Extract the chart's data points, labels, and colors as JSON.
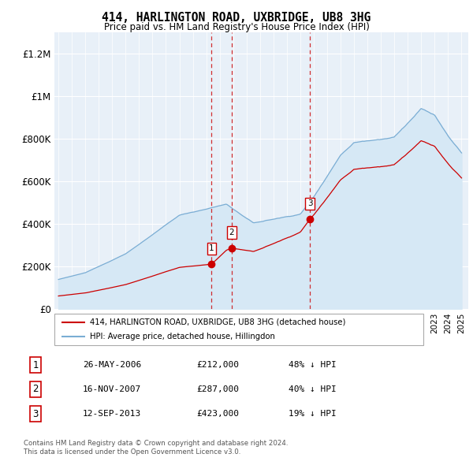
{
  "title": "414, HARLINGTON ROAD, UXBRIDGE, UB8 3HG",
  "subtitle": "Price paid vs. HM Land Registry's House Price Index (HPI)",
  "ylabel_ticks": [
    "£0",
    "£200K",
    "£400K",
    "£600K",
    "£800K",
    "£1M",
    "£1.2M"
  ],
  "ytick_vals": [
    0,
    200000,
    400000,
    600000,
    800000,
    1000000,
    1200000
  ],
  "ylim": [
    0,
    1300000
  ],
  "xlim_start": 1994.7,
  "xlim_end": 2025.5,
  "sales": [
    {
      "label": "1",
      "date": 2006.4,
      "price": 212000
    },
    {
      "label": "2",
      "date": 2007.88,
      "price": 287000
    },
    {
      "label": "3",
      "date": 2013.71,
      "price": 423000
    }
  ],
  "sale_line_color": "#cc0000",
  "hpi_line_color": "#7aadd4",
  "hpi_fill_color": "#d6e8f5",
  "legend_sale_label": "414, HARLINGTON ROAD, UXBRIDGE, UB8 3HG (detached house)",
  "legend_hpi_label": "HPI: Average price, detached house, Hillingdon",
  "table_rows": [
    {
      "num": "1",
      "date": "26-MAY-2006",
      "price": "£212,000",
      "hpi": "48% ↓ HPI"
    },
    {
      "num": "2",
      "date": "16-NOV-2007",
      "price": "£287,000",
      "hpi": "40% ↓ HPI"
    },
    {
      "num": "3",
      "date": "12-SEP-2013",
      "price": "£423,000",
      "hpi": "19% ↓ HPI"
    }
  ],
  "footnote": "Contains HM Land Registry data © Crown copyright and database right 2024.\nThis data is licensed under the Open Government Licence v3.0.",
  "background_color": "#ffffff",
  "plot_bg_color": "#e8f0f8"
}
